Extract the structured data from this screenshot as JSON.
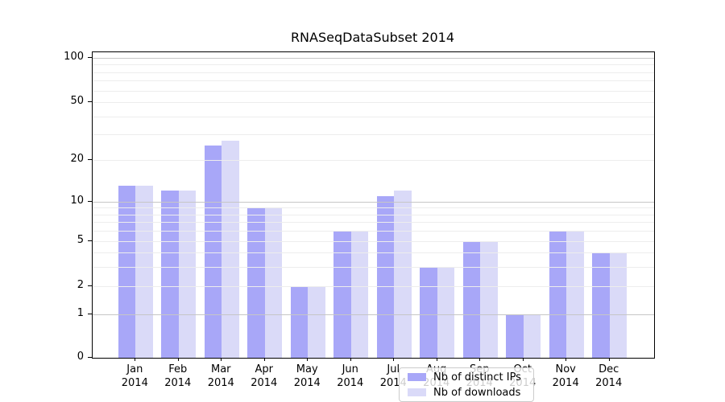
{
  "title": "RNASeqDataSubset 2014",
  "legend": {
    "items": [
      {
        "label": "Nb of distinct IPs",
        "color": "#a8a7f8"
      },
      {
        "label": "Nb of downloads",
        "color": "#dadaf8"
      }
    ]
  },
  "colors": {
    "bar_distinct_ips": "#a8a7f8",
    "bar_downloads": "#dadaf8",
    "grid_major": "#c6c6c6",
    "grid_minor": "#ededed",
    "axis": "#000000",
    "legend_border": "#cccccc",
    "background": "#ffffff"
  },
  "chart_data": {
    "type": "bar",
    "title": "RNASeqDataSubset 2014",
    "categories": [
      "Jan 2014",
      "Feb 2014",
      "Mar 2014",
      "Apr 2014",
      "May 2014",
      "Jun 2014",
      "Jul 2014",
      "Aug 2014",
      "Sep 2014",
      "Oct 2014",
      "Nov 2014",
      "Dec 2014"
    ],
    "series": [
      {
        "name": "Nb of distinct IPs",
        "color": "#a8a7f8",
        "values": [
          13,
          12,
          25,
          9,
          2,
          6,
          11,
          3,
          5,
          1,
          6,
          4
        ]
      },
      {
        "name": "Nb of downloads",
        "color": "#dadaf8",
        "values": [
          13,
          12,
          27,
          9,
          2,
          6,
          12,
          3,
          5,
          1,
          6,
          4
        ]
      }
    ],
    "xlabel": "",
    "ylabel": "",
    "yscale": "symlog-like",
    "yticks": [
      0,
      1,
      2,
      5,
      10,
      20,
      50,
      100
    ],
    "ylim": [
      0,
      110
    ],
    "grid": "horizontal, decade lines darker",
    "legend_position": "lower center"
  }
}
